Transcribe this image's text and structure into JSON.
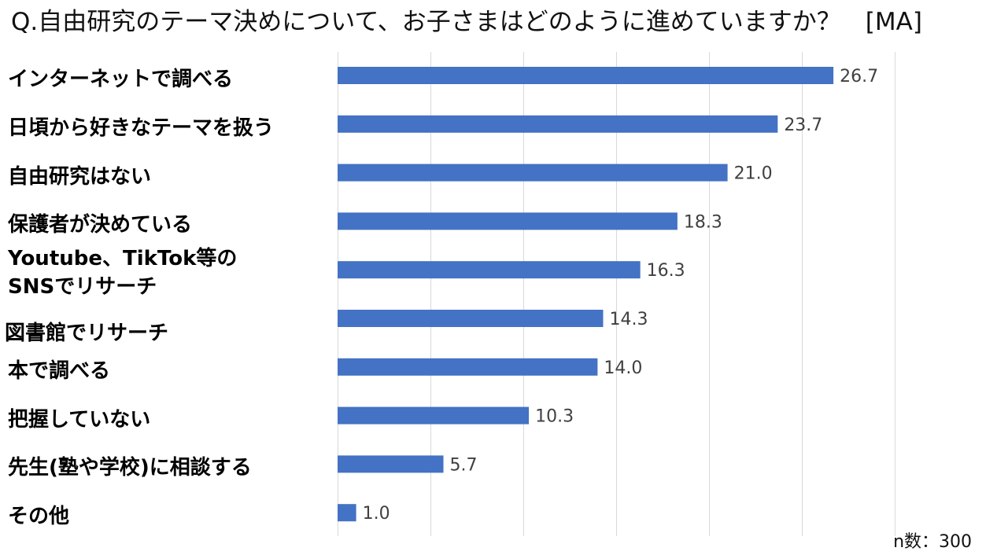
{
  "title": "Q.自由研究のテーマ決めについて、お子さまはどのように進めていますか？　[MA]",
  "sample_note": "n数：300",
  "colors": {
    "bar": "#4472C4",
    "grid": "#D9D9D9",
    "value_text": "#404040"
  },
  "chart_data": {
    "type": "bar",
    "orientation": "horizontal",
    "categories": [
      "インターネットで調べる",
      "日頃から好きなテーマを扱う",
      "自由研究はない",
      "保護者が決めている",
      "Youtube、TikTok等の SNSでリサーチ",
      "図書館でリサーチ",
      "本で調べる",
      "把握していない",
      "先生(塾や学校)に相談する",
      "その他"
    ],
    "values": [
      26.7,
      23.7,
      21.0,
      18.3,
      16.3,
      14.3,
      14.0,
      10.3,
      5.7,
      1.0
    ],
    "value_labels": [
      "26.7",
      "23.7",
      "21.0",
      "18.3",
      "16.3",
      "14.3",
      "14.0",
      "10.3",
      "5.7",
      "1.0"
    ],
    "xlim": [
      0,
      30
    ],
    "grid": true,
    "legend": false
  }
}
